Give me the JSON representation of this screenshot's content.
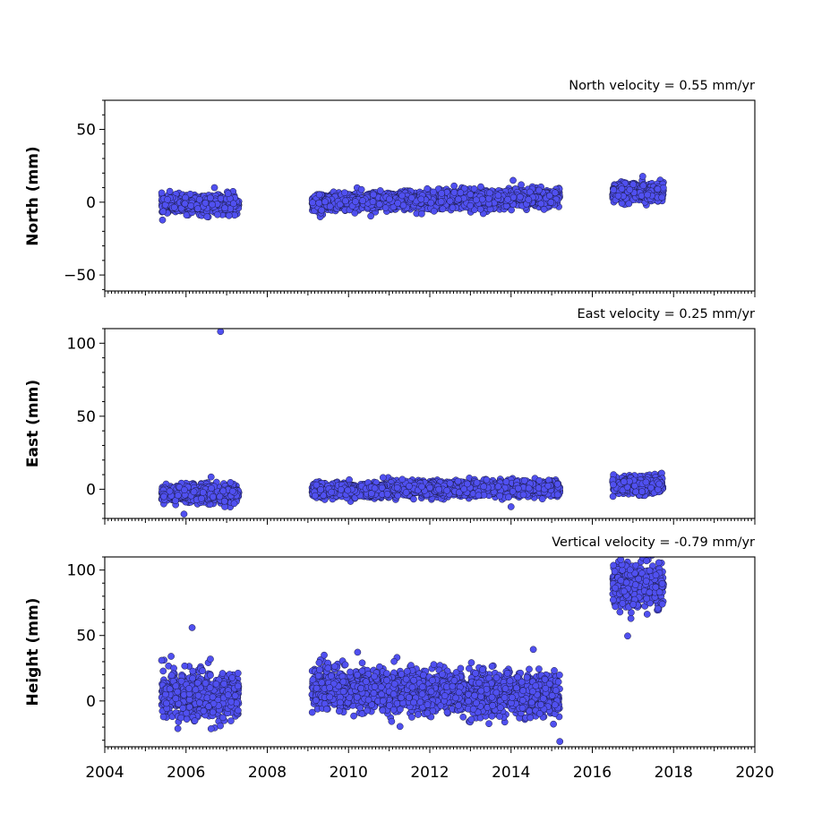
{
  "chart_data": [
    {
      "type": "scatter",
      "title": "North velocity = 0.55 mm/yr",
      "ylabel": "North (mm)",
      "xlim": [
        2004,
        2020
      ],
      "ylim": [
        -61,
        70
      ],
      "yticks": [
        -50,
        0,
        50
      ],
      "ytick_labels": [
        "−50",
        "0",
        "50"
      ],
      "xticks": [
        2004,
        2006,
        2008,
        2010,
        2012,
        2014,
        2016,
        2018,
        2020
      ],
      "xtick_labels": [],
      "series": [
        {
          "color": "#5050f0",
          "segments": [
            {
              "start": 2005.4,
              "end": 2007.3,
              "center": -1.5,
              "slope": 0.3,
              "spread": 3
            },
            {
              "start": 2009.1,
              "end": 2015.2,
              "center": 1.5,
              "slope": 0.55,
              "spread": 3
            },
            {
              "start": 2016.5,
              "end": 2017.75,
              "center": 7,
              "slope": 0.55,
              "spread": 3
            }
          ],
          "outliers": [
            {
              "x": 2006.7,
              "y": 10
            },
            {
              "x": 2014.05,
              "y": 15
            },
            {
              "x": 2014.25,
              "y": 12
            },
            {
              "x": 2011.8,
              "y": -8
            },
            {
              "x": 2016.9,
              "y": -1
            }
          ]
        }
      ]
    },
    {
      "type": "scatter",
      "title": "East velocity = 0.25 mm/yr",
      "ylabel": "East (mm)",
      "xlim": [
        2004,
        2020
      ],
      "ylim": [
        -20,
        110
      ],
      "yticks": [
        0,
        50,
        100
      ],
      "ytick_labels": [
        "0",
        "50",
        "100"
      ],
      "xticks": [
        2004,
        2006,
        2008,
        2010,
        2012,
        2014,
        2016,
        2018,
        2020
      ],
      "xtick_labels": [],
      "series": [
        {
          "color": "#5050f0",
          "segments": [
            {
              "start": 2005.4,
              "end": 2007.3,
              "center": -3,
              "slope": 0.2,
              "spread": 3
            },
            {
              "start": 2009.1,
              "end": 2015.2,
              "center": 0,
              "slope": 0.25,
              "spread": 2.5
            },
            {
              "start": 2016.5,
              "end": 2017.75,
              "center": 3,
              "slope": 0.25,
              "spread": 3
            }
          ],
          "outliers": [
            {
              "x": 2006.85,
              "y": 108
            },
            {
              "x": 2005.95,
              "y": -17
            },
            {
              "x": 2014.0,
              "y": -12
            },
            {
              "x": 2010.85,
              "y": 8
            }
          ]
        }
      ]
    },
    {
      "type": "scatter",
      "title": "Vertical velocity = -0.79 mm/yr",
      "ylabel": "Height (mm)",
      "xlim": [
        2004,
        2020
      ],
      "ylim": [
        -35,
        110
      ],
      "yticks": [
        0,
        50,
        100
      ],
      "ytick_labels": [
        "0",
        "50",
        "100"
      ],
      "xticks": [
        2004,
        2006,
        2008,
        2010,
        2012,
        2014,
        2016,
        2018,
        2020
      ],
      "xtick_labels": [
        "2004",
        "2006",
        "2008",
        "2010",
        "2012",
        "2014",
        "2016",
        "2018",
        "2020"
      ],
      "series": [
        {
          "color": "#5050f0",
          "segments": [
            {
              "start": 2005.4,
              "end": 2007.3,
              "center": 4,
              "slope": -0.5,
              "spread": 9
            },
            {
              "start": 2009.1,
              "end": 2015.2,
              "center": 7,
              "slope": -0.8,
              "spread": 8
            },
            {
              "start": 2016.5,
              "end": 2017.75,
              "center": 88,
              "slope": 0,
              "spread": 8
            }
          ],
          "outliers": [
            {
              "x": 2006.15,
              "y": 56
            },
            {
              "x": 2005.4,
              "y": 31
            },
            {
              "x": 2006.6,
              "y": 32
            },
            {
              "x": 2009.4,
              "y": 35
            },
            {
              "x": 2015.2,
              "y": -31
            },
            {
              "x": 2016.95,
              "y": 63
            },
            {
              "x": 2016.7,
              "y": 108
            }
          ]
        }
      ]
    }
  ]
}
